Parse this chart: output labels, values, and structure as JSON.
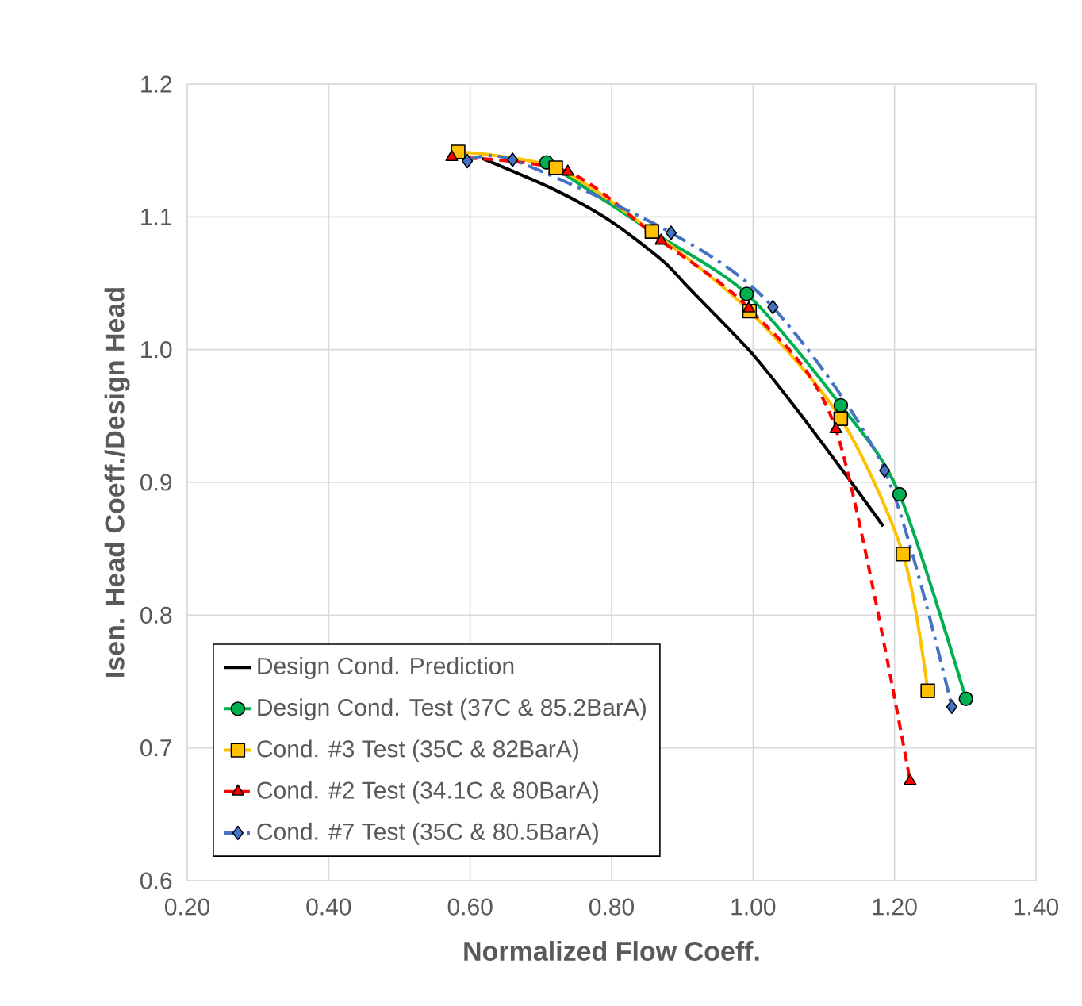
{
  "chart_data": {
    "type": "line",
    "xlabel": "Normalized Flow Coeff.",
    "ylabel": "Isen. Head Coeff./Design Head",
    "xlim": [
      0.2,
      1.4
    ],
    "ylim": [
      0.6,
      1.2
    ],
    "xticks": [
      {
        "value": 0.2,
        "label": "0.20"
      },
      {
        "value": 0.4,
        "label": "0.40"
      },
      {
        "value": 0.6,
        "label": "0.60"
      },
      {
        "value": 0.8,
        "label": "0.80"
      },
      {
        "value": 1.0,
        "label": "1.00"
      },
      {
        "value": 1.2,
        "label": "1.20"
      },
      {
        "value": 1.4,
        "label": "1.40"
      }
    ],
    "yticks": [
      0.6,
      0.7,
      0.8,
      0.9,
      {
        "value": 1.0,
        "label": "1.0"
      },
      1.1,
      1.2
    ],
    "grid": true,
    "legend": "bottom left",
    "series": [
      {
        "name": "Design Cond. Prediction",
        "color": "#000000",
        "marker": "none",
        "line_style": "solid",
        "x": [
          0.617,
          0.721,
          0.798,
          0.872,
          0.91,
          0.997,
          1.066,
          1.139,
          1.184
        ],
        "values": [
          1.144,
          1.12,
          1.097,
          1.067,
          1.046,
          0.998,
          0.952,
          0.9,
          0.867
        ]
      },
      {
        "name": "Design Cond. Test (37C & 85.2BarA)",
        "color": "#00b050",
        "marker": "circle",
        "line_style": "solid",
        "x": [
          0.708,
          0.857,
          0.991,
          1.124,
          1.207,
          1.301
        ],
        "values": [
          1.141,
          1.089,
          1.042,
          0.958,
          0.891,
          0.737
        ]
      },
      {
        "name": "Cond. #3 Test (35C & 82BarA)",
        "color": "#ffc000",
        "marker": "square",
        "line_style": "solid",
        "x": [
          0.583,
          0.721,
          0.857,
          0.995,
          1.124,
          1.212,
          1.247
        ],
        "values": [
          1.149,
          1.137,
          1.089,
          1.029,
          0.948,
          0.846,
          0.743
        ]
      },
      {
        "name": "Cond. #2 Test (34.1C & 80BarA)",
        "color": "#ff0000",
        "marker": "triangle",
        "line_style": "dashed",
        "x": [
          0.574,
          0.738,
          0.87,
          0.994,
          1.117,
          1.222
        ],
        "values": [
          1.145,
          1.134,
          1.082,
          1.031,
          0.94,
          0.675
        ]
      },
      {
        "name": "Cond. #7 Test (35C & 80.5BarA)",
        "color": "#4472c4",
        "marker": "diamond",
        "line_style": "dashdot",
        "x": [
          0.596,
          0.66,
          0.884,
          1.028,
          1.186,
          1.281
        ],
        "values": [
          1.142,
          1.143,
          1.088,
          1.032,
          0.909,
          0.731
        ]
      }
    ]
  }
}
